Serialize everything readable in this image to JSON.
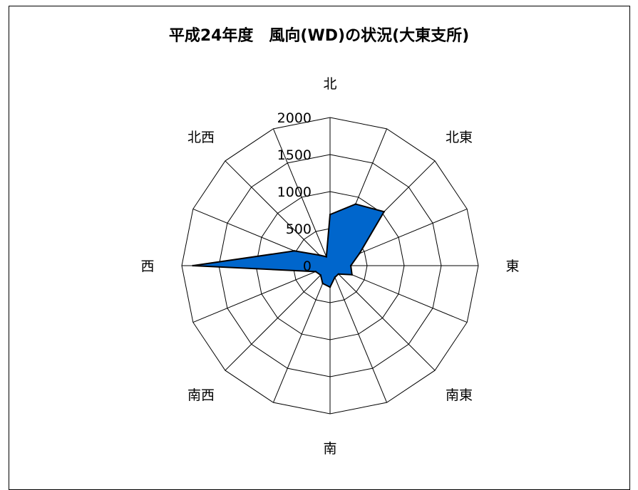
{
  "chart_data": {
    "type": "radar",
    "title": "平成24年度　風向(WD)の状況(大東支所)",
    "directions": [
      "北",
      "",
      "北東",
      "",
      "東",
      "",
      "南東",
      "",
      "南",
      "",
      "南西",
      "",
      "西",
      "",
      "北西",
      ""
    ],
    "values": [
      690,
      900,
      1030,
      430,
      280,
      320,
      160,
      170,
      290,
      260,
      180,
      210,
      1850,
      520,
      200,
      130
    ],
    "rmax": 2000,
    "ticks": [
      "0",
      "500",
      "1000",
      "1500",
      "2000"
    ],
    "tick_values": [
      0,
      500,
      1000,
      1500,
      2000
    ],
    "fill_color": "#0066cc",
    "line_color": "#000000",
    "grid": true
  }
}
